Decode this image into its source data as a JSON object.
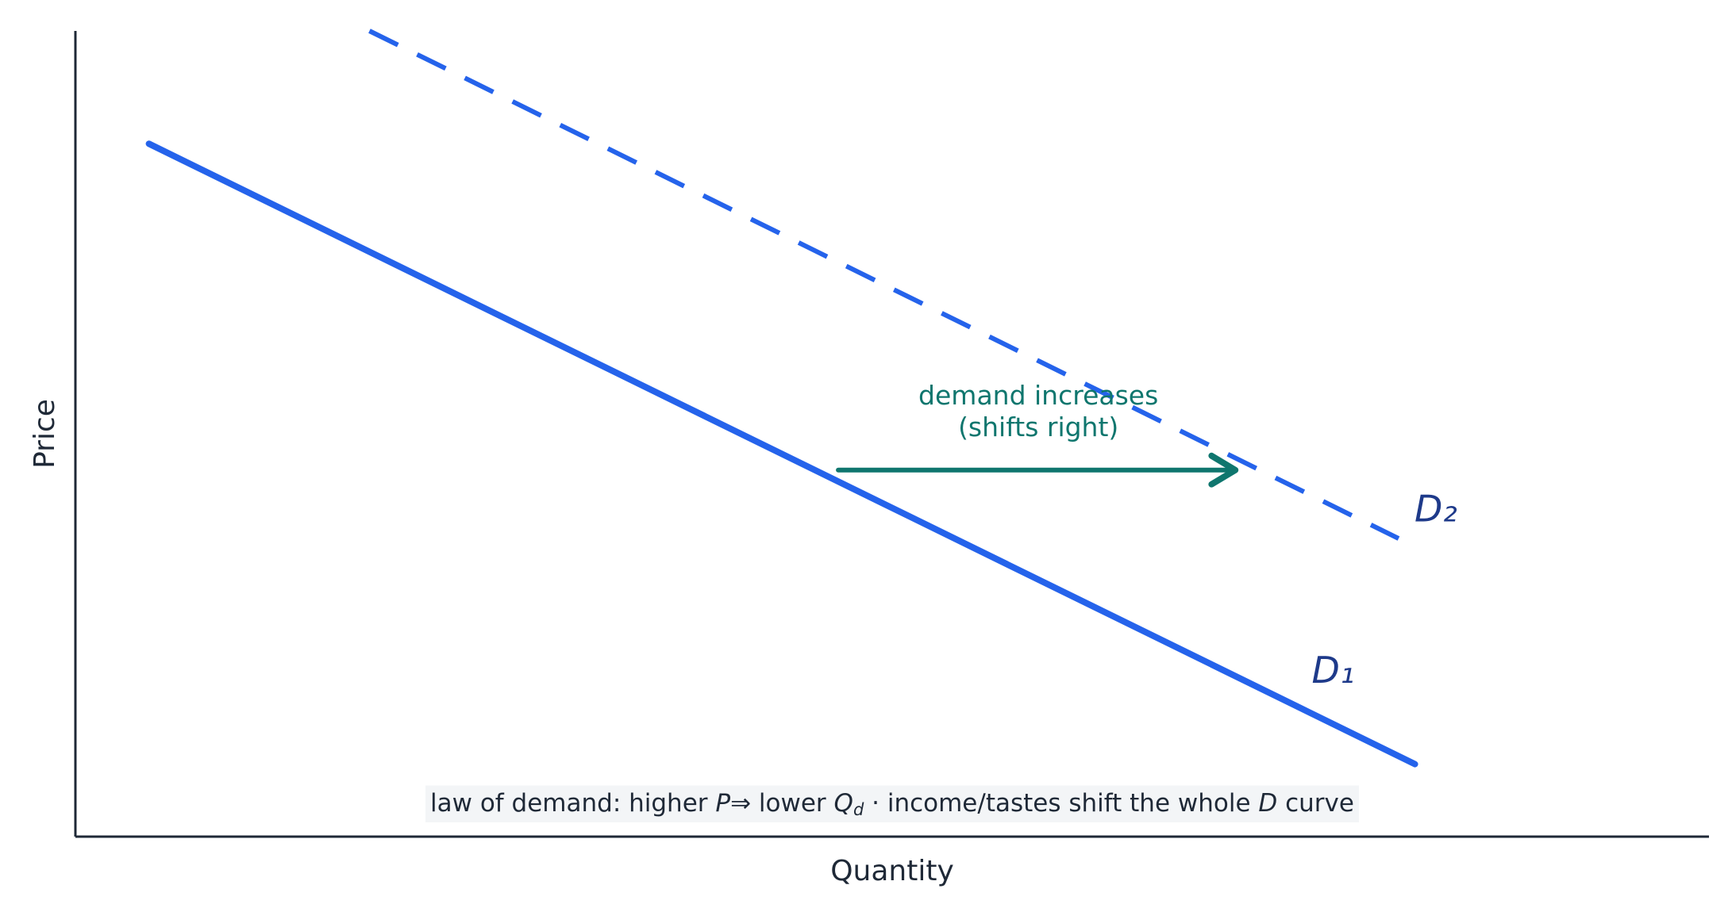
{
  "chart_data": {
    "type": "line",
    "xlabel": "Quantity",
    "ylabel": "Price",
    "xlim": [
      0,
      10
    ],
    "ylim": [
      0,
      10
    ],
    "series": [
      {
        "name": "D₁",
        "color": "#2563eb",
        "style": "solid",
        "x": [
          0.45,
          8.2
        ],
        "values": [
          8.6,
          0.9
        ]
      },
      {
        "name": "D₂",
        "color": "#2563eb",
        "style": "dashed",
        "x": [
          1.8,
          8.1
        ],
        "values": [
          10,
          3.7
        ]
      }
    ],
    "shift_arrow": {
      "x": [
        4.67,
        7.12
      ],
      "y": 4.55,
      "color": "#0f766e",
      "text": [
        "demand increases",
        "(shifts right)"
      ]
    },
    "footnote": [
      "law of demand: higher ",
      "P",
      "⇒ lower ",
      "Q",
      "d",
      " · income/tastes shift the whole ",
      "D",
      " curve"
    ]
  }
}
